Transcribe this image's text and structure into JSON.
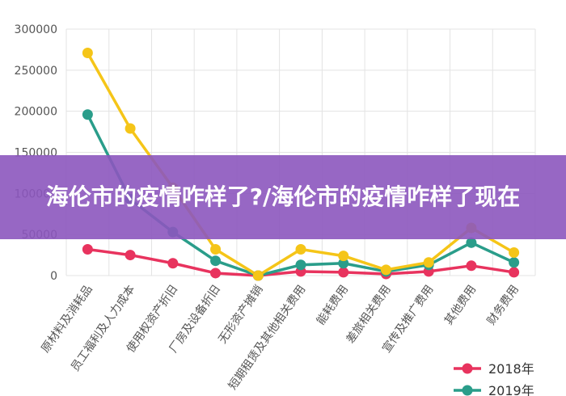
{
  "banner": {
    "title": "海伦市的疫情咋样了?/海伦市的疫情咋样了现在"
  },
  "chart_data": {
    "type": "line",
    "title": "",
    "xlabel": "",
    "ylabel": "",
    "ylim": [
      0,
      300000
    ],
    "y_ticks": [
      "0",
      "50000",
      "100000",
      "150000",
      "200000",
      "250000",
      "300000"
    ],
    "grid": true,
    "legend_position": "bottom-right",
    "categories": [
      "原材料及消耗品",
      "员工福利及人力成本",
      "使用权资产折旧",
      "厂房及设备折旧",
      "无形资产摊销",
      "短期租赁及其他相关费用",
      "能耗费用",
      "差旅相关费用",
      "宣传及推广费用",
      "其他费用",
      "财务费用"
    ],
    "series": [
      {
        "name": "2018年",
        "color": "#e8335e",
        "values": [
          32000,
          25000,
          15000,
          3000,
          0,
          5000,
          4000,
          2000,
          5000,
          12000,
          4000
        ]
      },
      {
        "name": "2019年",
        "color": "#2a9d8a",
        "values": [
          196000,
          93000,
          53000,
          18000,
          0,
          13000,
          15000,
          5000,
          13000,
          40000,
          16000
        ]
      },
      {
        "name": "",
        "color": "#f5c518",
        "values": [
          271000,
          179000,
          107000,
          32000,
          0,
          32000,
          24000,
          7000,
          16000,
          58000,
          28000
        ]
      }
    ]
  }
}
